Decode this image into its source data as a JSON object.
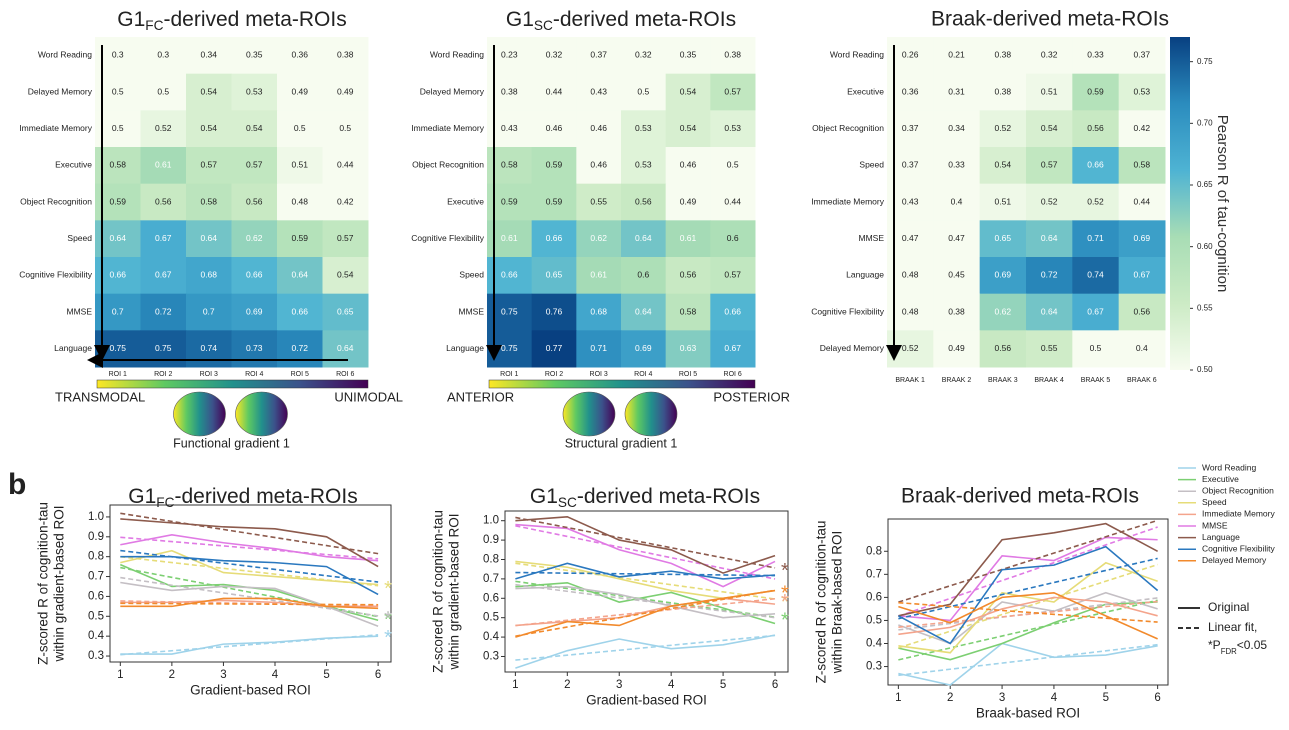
{
  "panel_label": "b",
  "chart_data": [
    {
      "type": "heatmap",
      "title": {
        "text": "G1",
        "sub": "FC",
        "rest": "-derived meta-ROIs"
      },
      "rows": [
        "Word Reading",
        "Delayed Memory",
        "Immediate Memory",
        "Executive",
        "Object Recognition",
        "Speed",
        "Cognitive Flexibility",
        "MMSE",
        "Language"
      ],
      "columns": [
        "ROI 1",
        "ROI 2",
        "ROI 3",
        "ROI 4",
        "ROI 5",
        "ROI 6"
      ],
      "values": [
        [
          0.3,
          0.3,
          0.34,
          0.35,
          0.36,
          0.38
        ],
        [
          0.5,
          0.5,
          0.54,
          0.53,
          0.49,
          0.49
        ],
        [
          0.5,
          0.52,
          0.54,
          0.54,
          0.5,
          0.5
        ],
        [
          0.58,
          0.61,
          0.57,
          0.57,
          0.51,
          0.44
        ],
        [
          0.59,
          0.56,
          0.58,
          0.56,
          0.48,
          0.42
        ],
        [
          0.64,
          0.67,
          0.64,
          0.62,
          0.59,
          0.57
        ],
        [
          0.66,
          0.67,
          0.68,
          0.66,
          0.64,
          0.54
        ],
        [
          0.7,
          0.72,
          0.7,
          0.69,
          0.66,
          0.65
        ],
        [
          0.75,
          0.75,
          0.74,
          0.73,
          0.72,
          0.64
        ]
      ],
      "color_lim": [
        0.5,
        0.77
      ],
      "gradient": {
        "left": "TRANSMODAL",
        "right": "UNIMODAL",
        "caption": "Functional gradient 1"
      }
    },
    {
      "type": "heatmap",
      "title": {
        "text": "G1",
        "sub": "SC",
        "rest": "-derived meta-ROIs"
      },
      "rows": [
        "Word Reading",
        "Delayed Memory",
        "Immediate Memory",
        "Object Recognition",
        "Executive",
        "Cognitive Flexibility",
        "Speed",
        "MMSE",
        "Language"
      ],
      "columns": [
        "ROI 1",
        "ROI 2",
        "ROI 3",
        "ROI 4",
        "ROI 5",
        "ROI 6"
      ],
      "values": [
        [
          0.23,
          0.32,
          0.37,
          0.32,
          0.35,
          0.38
        ],
        [
          0.38,
          0.44,
          0.43,
          0.5,
          0.54,
          0.57
        ],
        [
          0.43,
          0.46,
          0.46,
          0.53,
          0.54,
          0.53
        ],
        [
          0.58,
          0.59,
          0.46,
          0.53,
          0.46,
          0.5
        ],
        [
          0.59,
          0.59,
          0.55,
          0.56,
          0.49,
          0.44
        ],
        [
          0.61,
          0.66,
          0.62,
          0.64,
          0.61,
          0.6
        ],
        [
          0.66,
          0.65,
          0.61,
          0.6,
          0.56,
          0.57
        ],
        [
          0.75,
          0.76,
          0.68,
          0.64,
          0.58,
          0.66
        ],
        [
          0.75,
          0.77,
          0.71,
          0.69,
          0.63,
          0.67
        ]
      ],
      "color_lim": [
        0.5,
        0.77
      ],
      "gradient": {
        "left": "ANTERIOR",
        "right": "POSTERIOR",
        "caption": "Structural gradient 1"
      }
    },
    {
      "type": "heatmap",
      "title": "Braak-derived meta-ROIs",
      "rows": [
        "Word Reading",
        "Executive",
        "Object Recognition",
        "Speed",
        "Immediate Memory",
        "MMSE",
        "Language",
        "Cognitive Flexibility",
        "Delayed Memory"
      ],
      "columns": [
        "BRAAK 1",
        "BRAAK 2",
        "BRAAK 3",
        "BRAAK 4",
        "BRAAK 5",
        "BRAAK 6"
      ],
      "values": [
        [
          0.26,
          0.21,
          0.38,
          0.32,
          0.33,
          0.37
        ],
        [
          0.36,
          0.31,
          0.38,
          0.51,
          0.59,
          0.53
        ],
        [
          0.37,
          0.34,
          0.52,
          0.54,
          0.56,
          0.42
        ],
        [
          0.37,
          0.33,
          0.54,
          0.57,
          0.66,
          0.58
        ],
        [
          0.43,
          0.4,
          0.51,
          0.52,
          0.52,
          0.44
        ],
        [
          0.47,
          0.47,
          0.65,
          0.64,
          0.71,
          0.69
        ],
        [
          0.48,
          0.45,
          0.69,
          0.72,
          0.74,
          0.67
        ],
        [
          0.48,
          0.38,
          0.62,
          0.64,
          0.67,
          0.56
        ],
        [
          0.52,
          0.49,
          0.56,
          0.55,
          0.5,
          0.4
        ]
      ],
      "color_lim": [
        0.5,
        0.77
      ],
      "colorbar": {
        "label": "Pearson R of tau-cognition",
        "ticks": [
          {
            "value": 0.5,
            "label": "0.50"
          },
          0.55,
          {
            "value": 0.6,
            "label": "0.60"
          },
          0.65,
          {
            "value": 0.7,
            "label": "0.70"
          },
          0.75
        ]
      }
    },
    {
      "type": "line",
      "title": {
        "text": "G1",
        "sub": "FC",
        "rest": "-derived meta-ROIs"
      },
      "xlabel": "Gradient-based ROI",
      "ylabel": [
        "Z-scored R of cognition-tau",
        "within gradient-based ROI"
      ],
      "x": [
        1,
        2,
        3,
        4,
        5,
        6
      ],
      "xlim": [
        0.8,
        6.25
      ],
      "xticks": [
        1,
        2,
        3,
        4,
        5,
        6
      ],
      "ylim": [
        0.27,
        1.06
      ],
      "yticks": [
        0.3,
        0.4,
        0.5,
        0.6,
        0.7,
        0.8,
        0.9,
        {
          "value": 1,
          "label": "1.0"
        }
      ],
      "series": [
        {
          "name": "Word Reading",
          "color": "#9fd3ea",
          "values": [
            0.31,
            0.31,
            0.36,
            0.37,
            0.39,
            0.4
          ],
          "significance": "*"
        },
        {
          "name": "Executive",
          "color": "#7ccf72",
          "values": [
            0.76,
            0.65,
            0.66,
            0.63,
            0.55,
            0.48
          ],
          "significance": "*"
        },
        {
          "name": "Object Recognition",
          "color": "#c4bfc4",
          "values": [
            0.67,
            0.63,
            0.65,
            0.64,
            0.55,
            0.45
          ],
          "significance": "*"
        },
        {
          "name": "Speed",
          "color": "#e6dc78",
          "values": [
            0.77,
            0.83,
            0.72,
            0.7,
            0.68,
            0.66
          ],
          "significance": "*"
        },
        {
          "name": "Immediate Memory",
          "color": "#f4a48c",
          "values": [
            0.57,
            0.57,
            0.58,
            0.57,
            0.55,
            0.55
          ]
        },
        {
          "name": "MMSE",
          "color": "#e07ae4",
          "values": [
            0.86,
            0.91,
            0.87,
            0.84,
            0.8,
            0.78
          ]
        },
        {
          "name": "Language",
          "color": "#8c5a4c",
          "values": [
            0.99,
            0.97,
            0.95,
            0.94,
            0.9,
            0.75
          ]
        },
        {
          "name": "Cognitive Flexibility",
          "color": "#2a78bf",
          "values": [
            0.8,
            0.8,
            0.78,
            0.77,
            0.75,
            0.61
          ]
        },
        {
          "name": "Delayed Memory",
          "color": "#f28a2c",
          "values": [
            0.55,
            0.55,
            0.59,
            0.59,
            0.55,
            0.54
          ]
        }
      ]
    },
    {
      "type": "line",
      "title": {
        "text": "G1",
        "sub": "SC",
        "rest": "-derived meta-ROIs"
      },
      "xlabel": "Gradient-based ROI",
      "ylabel": [
        "Z-scored R of cognition-tau",
        "within gradient-based ROI"
      ],
      "x": [
        1,
        2,
        3,
        4,
        5,
        6
      ],
      "xlim": [
        0.8,
        6.25
      ],
      "xticks": [
        1,
        2,
        3,
        4,
        5,
        6
      ],
      "ylim": [
        0.22,
        1.05
      ],
      "yticks": [
        0.3,
        0.4,
        0.5,
        0.6,
        0.7,
        0.8,
        0.9,
        {
          "value": 1,
          "label": "1.0"
        }
      ],
      "series": [
        {
          "name": "Word Reading",
          "color": "#9fd3ea",
          "values": [
            0.24,
            0.33,
            0.39,
            0.34,
            0.36,
            0.41
          ]
        },
        {
          "name": "Executive",
          "color": "#7ccf72",
          "values": [
            0.66,
            0.68,
            0.58,
            0.63,
            0.55,
            0.47
          ],
          "significance": "*"
        },
        {
          "name": "Object Recognition",
          "color": "#c4bfc4",
          "values": [
            0.65,
            0.66,
            0.62,
            0.56,
            0.5,
            0.52
          ]
        },
        {
          "name": "Speed",
          "color": "#e6dc78",
          "values": [
            0.79,
            0.76,
            0.7,
            0.64,
            0.6,
            0.64
          ],
          "significance": "*"
        },
        {
          "name": "Immediate Memory",
          "color": "#f4a48c",
          "values": [
            0.46,
            0.48,
            0.5,
            0.56,
            0.6,
            0.57
          ],
          "significance": "*"
        },
        {
          "name": "MMSE",
          "color": "#e07ae4",
          "values": [
            0.98,
            0.96,
            0.85,
            0.78,
            0.66,
            0.79
          ]
        },
        {
          "name": "Language",
          "color": "#8c5a4c",
          "values": [
            1.0,
            1.02,
            0.9,
            0.85,
            0.73,
            0.82
          ],
          "significance": "*"
        },
        {
          "name": "Cognitive Flexibility",
          "color": "#2a78bf",
          "values": [
            0.7,
            0.78,
            0.71,
            0.74,
            0.7,
            0.72
          ]
        },
        {
          "name": "Delayed Memory",
          "color": "#f28a2c",
          "values": [
            0.4,
            0.48,
            0.46,
            0.56,
            0.6,
            0.64
          ],
          "significance": "*"
        }
      ]
    },
    {
      "type": "line",
      "title": "Braak-derived meta-ROIs",
      "xlabel": "Braak-based ROI",
      "ylabel": [
        "Z-scored R of cognition-tau",
        "within Braak-based ROI"
      ],
      "x": [
        1,
        2,
        3,
        4,
        5,
        6
      ],
      "xlim": [
        0.8,
        6.2
      ],
      "xticks": [
        1,
        2,
        3,
        4,
        5,
        6
      ],
      "ylim": [
        0.22,
        0.94
      ],
      "yticks": [
        0.3,
        0.4,
        0.5,
        0.6,
        0.7,
        0.8
      ],
      "series": [
        {
          "name": "Word Reading",
          "color": "#9fd3ea",
          "values": [
            0.27,
            0.22,
            0.4,
            0.34,
            0.35,
            0.39
          ]
        },
        {
          "name": "Executive",
          "color": "#7ccf72",
          "values": [
            0.38,
            0.33,
            0.4,
            0.49,
            0.57,
            0.58
          ]
        },
        {
          "name": "Object Recognition",
          "color": "#c4bfc4",
          "values": [
            0.48,
            0.4,
            0.58,
            0.54,
            0.62,
            0.55
          ]
        },
        {
          "name": "Speed",
          "color": "#e6dc78",
          "values": [
            0.39,
            0.36,
            0.62,
            0.58,
            0.75,
            0.67
          ]
        },
        {
          "name": "Immediate Memory",
          "color": "#f4a48c",
          "values": [
            0.44,
            0.47,
            0.55,
            0.6,
            0.58,
            0.52
          ]
        },
        {
          "name": "MMSE",
          "color": "#e07ae4",
          "values": [
            0.52,
            0.5,
            0.78,
            0.76,
            0.86,
            0.85
          ]
        },
        {
          "name": "Language",
          "color": "#8c5a4c",
          "values": [
            0.52,
            0.57,
            0.85,
            0.88,
            0.92,
            0.8
          ]
        },
        {
          "name": "Cognitive Flexibility",
          "color": "#2a78bf",
          "values": [
            0.52,
            0.4,
            0.72,
            0.74,
            0.82,
            0.63
          ]
        },
        {
          "name": "Delayed Memory",
          "color": "#f28a2c",
          "values": [
            0.56,
            0.49,
            0.6,
            0.62,
            0.52,
            0.42
          ]
        }
      ],
      "legend": {
        "original": "Original",
        "fit": "Linear fit,",
        "note": {
          "text": "*P",
          "sub": "FDR",
          "rest": "<0.05"
        }
      }
    }
  ]
}
